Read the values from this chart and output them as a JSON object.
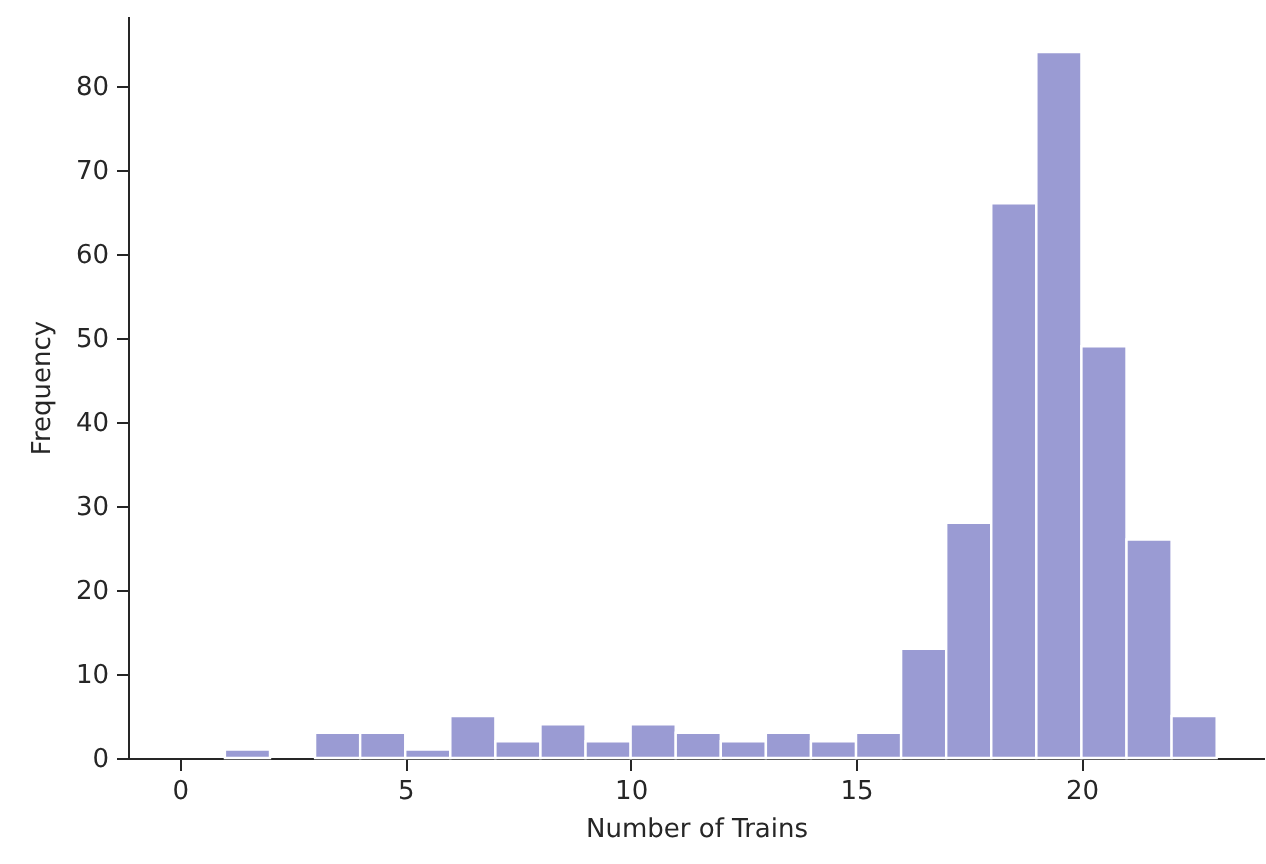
{
  "chart_data": {
    "type": "histogram",
    "xlabel": "Number of Trains",
    "ylabel": "Frequency",
    "color": "#9a9bd3",
    "bins": [
      1,
      2,
      3,
      4,
      5,
      6,
      7,
      8,
      9,
      10,
      11,
      12,
      13,
      14,
      15,
      16,
      17,
      18,
      19,
      20,
      21,
      22,
      23
    ],
    "values": [
      1,
      0,
      3,
      3,
      1,
      5,
      2,
      4,
      2,
      4,
      3,
      2,
      3,
      2,
      3,
      13,
      28,
      66,
      84,
      49,
      26,
      5
    ],
    "xlim": [
      -1.15,
      24.05
    ],
    "xticks": [
      0,
      5,
      10,
      15,
      20
    ],
    "ylim": [
      0,
      88.3
    ],
    "yticks": [
      0,
      10,
      20,
      30,
      40,
      50,
      60,
      70,
      80
    ],
    "grid": false
  }
}
